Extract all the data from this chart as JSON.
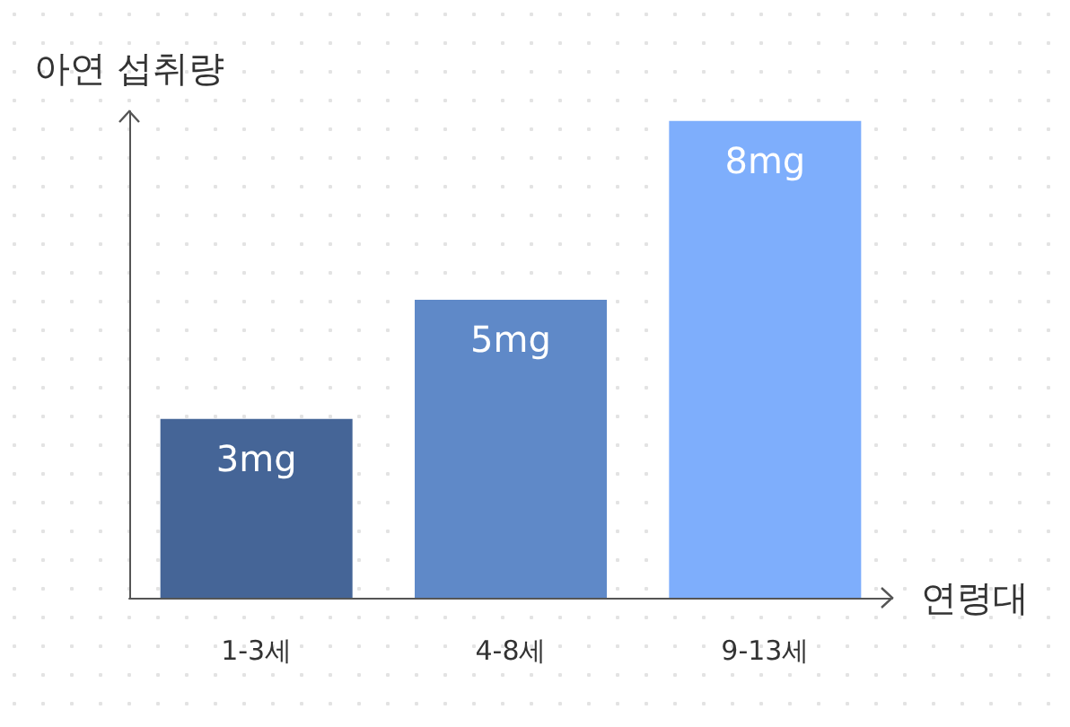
{
  "chart_data": {
    "type": "bar",
    "xlabel": "연령대",
    "ylabel": "아연 섭취량",
    "categories": [
      "1-3세",
      "4-8세",
      "9-13세"
    ],
    "values": [
      3,
      5,
      8
    ],
    "colors": [
      "#456597",
      "#5f89c8",
      "#7eaefc"
    ],
    "value_labels": [
      "3mg",
      "5mg",
      "8mg"
    ],
    "grid": false
  }
}
